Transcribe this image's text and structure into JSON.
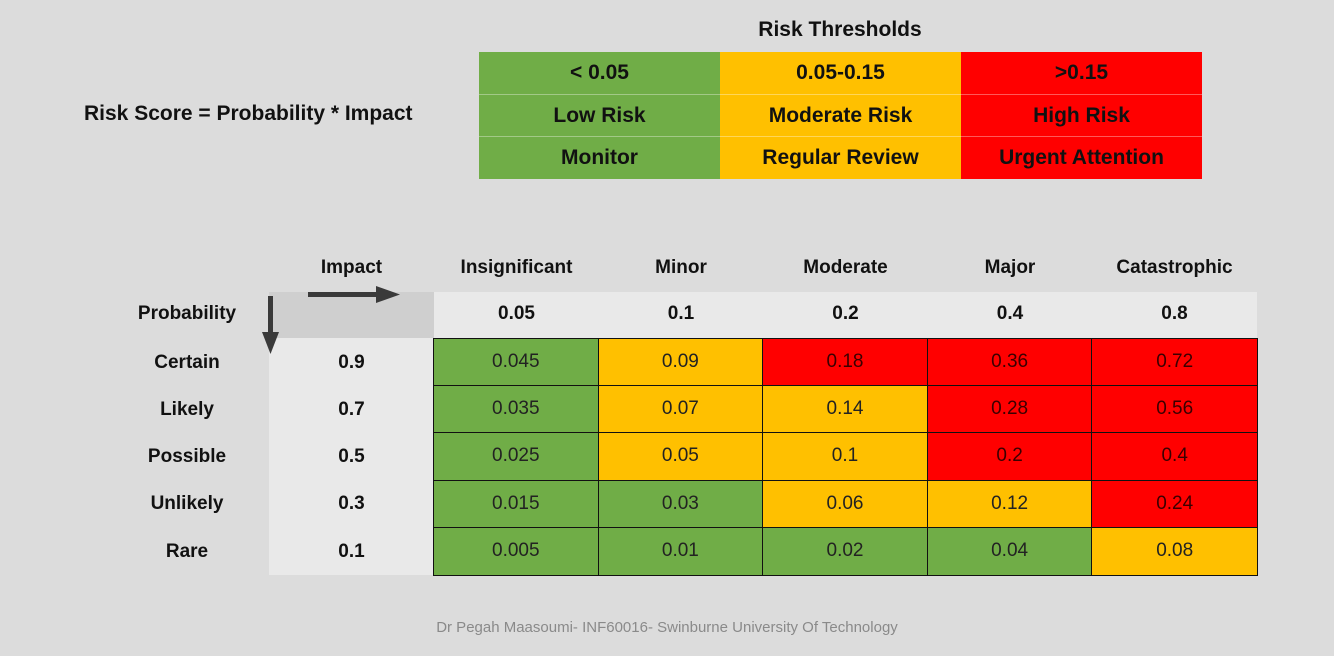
{
  "formula": "Risk Score = Probability * Impact",
  "thresholds": {
    "title": "Risk Thresholds",
    "columns": [
      {
        "range": "< 0.05",
        "level": "Low  Risk",
        "action": "Monitor",
        "color": "#70ad47"
      },
      {
        "range": "0.05-0.15",
        "level": "Moderate Risk",
        "action": "Regular Review",
        "color": "#ffc000"
      },
      {
        "range": ">0.15",
        "level": "High Risk",
        "action": "Urgent Attention",
        "color": "#ff0000"
      }
    ]
  },
  "matrix": {
    "impact_label": "Impact",
    "probability_label": "Probability",
    "impact_headers": [
      "Insignificant",
      "Minor",
      "Moderate",
      "Major",
      "Catastrophic"
    ],
    "impact_values": [
      "0.05",
      "0.1",
      "0.2",
      "0.4",
      "0.8"
    ],
    "rows": [
      {
        "label": "Certain",
        "prob": "0.9",
        "cells": [
          "0.045",
          "0.09",
          "0.18",
          "0.36",
          "0.72"
        ],
        "colors": [
          "g",
          "y",
          "r",
          "r",
          "r"
        ]
      },
      {
        "label": "Likely",
        "prob": "0.7",
        "cells": [
          "0.035",
          "0.07",
          "0.14",
          "0.28",
          "0.56"
        ],
        "colors": [
          "g",
          "y",
          "y",
          "r",
          "r"
        ]
      },
      {
        "label": "Possible",
        "prob": "0.5",
        "cells": [
          "0.025",
          "0.05",
          "0.1",
          "0.2",
          "0.4"
        ],
        "colors": [
          "g",
          "y",
          "y",
          "r",
          "r"
        ]
      },
      {
        "label": "Unlikely",
        "prob": "0.3",
        "cells": [
          "0.015",
          "0.03",
          "0.06",
          "0.12",
          "0.24"
        ],
        "colors": [
          "g",
          "g",
          "y",
          "y",
          "r"
        ]
      },
      {
        "label": "Rare",
        "prob": "0.1",
        "cells": [
          "0.005",
          "0.01",
          "0.02",
          "0.04",
          "0.08"
        ],
        "colors": [
          "g",
          "g",
          "g",
          "g",
          "y"
        ]
      }
    ]
  },
  "footer": "Dr Pegah Maasoumi- INF60016- Swinburne University Of Technology"
}
